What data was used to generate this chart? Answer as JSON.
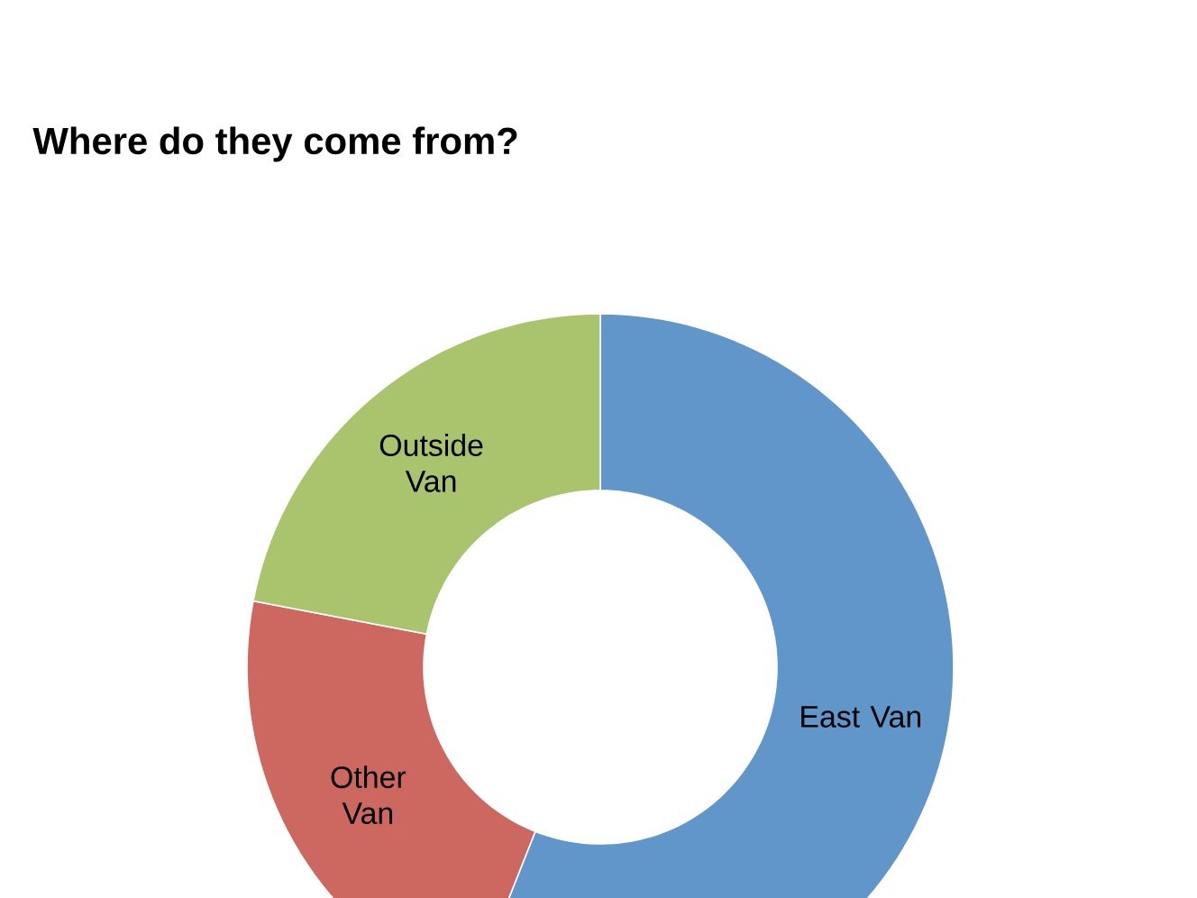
{
  "chart_data": {
    "type": "donut",
    "title": "Where do they come from?",
    "categories": [
      "East Van",
      "Other Van",
      "Outside Van"
    ],
    "values": [
      56,
      22,
      22
    ],
    "colors": [
      "#6096c9",
      "#cc6860",
      "#aac46e"
    ]
  }
}
